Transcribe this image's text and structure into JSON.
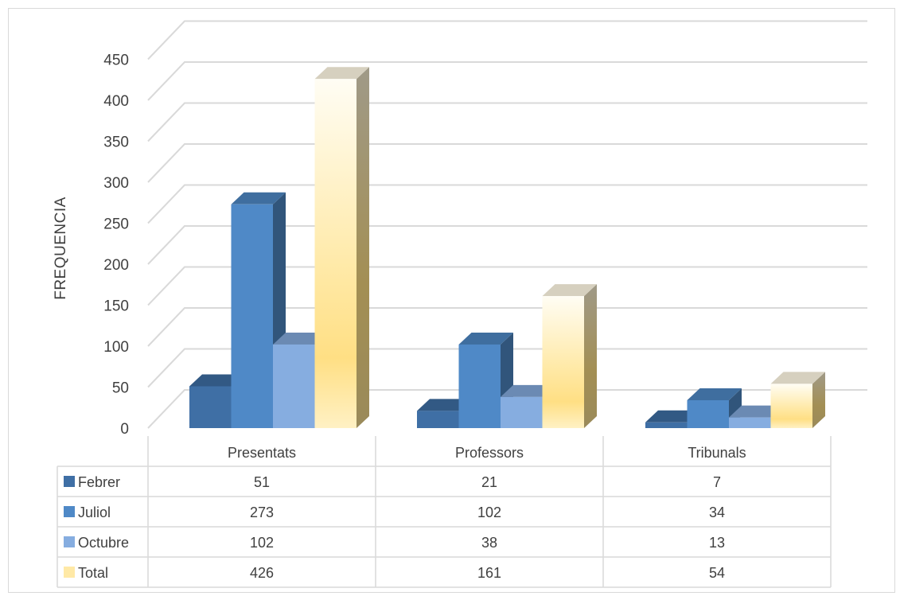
{
  "chart_data": {
    "type": "bar",
    "title": "",
    "xlabel": "",
    "ylabel": "FREQUENCIA",
    "ylim": [
      0,
      450
    ],
    "yticks": [
      "0",
      "50",
      "100",
      "150",
      "200",
      "250",
      "300",
      "350",
      "400",
      "450"
    ],
    "grid": true,
    "legend": "data-table",
    "categories": [
      "Presentats",
      "Professors",
      "Tribunals"
    ],
    "series": [
      {
        "name": "Febrer",
        "values": [
          51,
          21,
          7
        ],
        "color": "#3f6fa5"
      },
      {
        "name": "Juliol",
        "values": [
          273,
          102,
          34
        ],
        "color": "#4f89c7"
      },
      {
        "name": "Octubre",
        "values": [
          102,
          38,
          13
        ],
        "color": "#86ade0"
      },
      {
        "name": "Total",
        "values": [
          426,
          161,
          54
        ],
        "color": "#fff4c8"
      }
    ],
    "table_values": [
      [
        "51",
        "21",
        "7"
      ],
      [
        "273",
        "102",
        "34"
      ],
      [
        "102",
        "38",
        "13"
      ],
      [
        "426",
        "161",
        "54"
      ]
    ]
  }
}
